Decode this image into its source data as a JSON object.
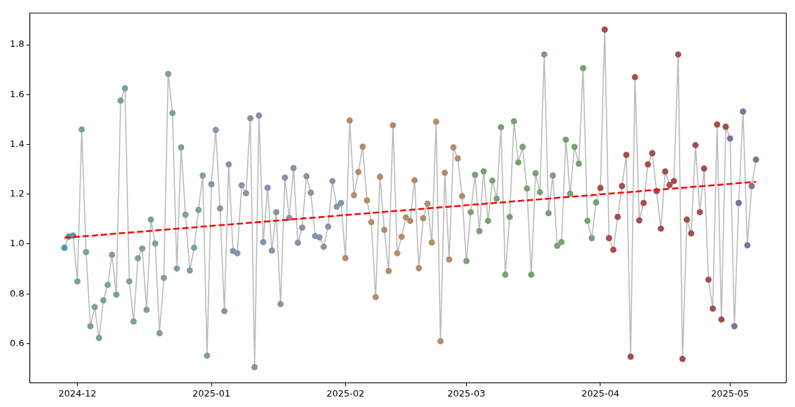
{
  "chart_data": {
    "type": "line",
    "marker": "circle",
    "line_style": "solid",
    "grid": false,
    "legend": false,
    "xlim": [
      "2024-11-20",
      "2025-05-14"
    ],
    "xticks": [
      "2024-12",
      "2025-01",
      "2025-02",
      "2025-03",
      "2025-04",
      "2025-05"
    ],
    "ylim": [
      0.443,
      1.927
    ],
    "yticks": [
      0.6,
      0.8,
      {
        "value": 1.0,
        "label": "1.0"
      },
      1.2,
      1.4,
      1.6,
      1.8
    ],
    "x": [
      "2024-11-28",
      "2024-11-29",
      "2024-11-30",
      "2024-12-01",
      "2024-12-02",
      "2024-12-03",
      "2024-12-04",
      "2024-12-05",
      "2024-12-06",
      "2024-12-07",
      "2024-12-08",
      "2024-12-09",
      "2024-12-10",
      "2024-12-11",
      "2024-12-12",
      "2024-12-13",
      "2024-12-14",
      "2024-12-15",
      "2024-12-16",
      "2024-12-17",
      "2024-12-18",
      "2024-12-19",
      "2024-12-20",
      "2024-12-21",
      "2024-12-22",
      "2024-12-23",
      "2024-12-24",
      "2024-12-25",
      "2024-12-26",
      "2024-12-27",
      "2024-12-28",
      "2024-12-29",
      "2024-12-30",
      "2024-12-31",
      "2025-01-01",
      "2025-01-02",
      "2025-01-03",
      "2025-01-04",
      "2025-01-05",
      "2025-01-06",
      "2025-01-07",
      "2025-01-08",
      "2025-01-09",
      "2025-01-10",
      "2025-01-11",
      "2025-01-12",
      "2025-01-13",
      "2025-01-14",
      "2025-01-15",
      "2025-01-16",
      "2025-01-17",
      "2025-01-18",
      "2025-01-19",
      "2025-01-20",
      "2025-01-21",
      "2025-01-22",
      "2025-01-23",
      "2025-01-24",
      "2025-01-25",
      "2025-01-26",
      "2025-01-27",
      "2025-01-28",
      "2025-01-29",
      "2025-01-30",
      "2025-01-31",
      "2025-02-01",
      "2025-02-02",
      "2025-02-03",
      "2025-02-04",
      "2025-02-05",
      "2025-02-06",
      "2025-02-07",
      "2025-02-08",
      "2025-02-09",
      "2025-02-10",
      "2025-02-11",
      "2025-02-12",
      "2025-02-13",
      "2025-02-14",
      "2025-02-15",
      "2025-02-16",
      "2025-02-17",
      "2025-02-18",
      "2025-02-19",
      "2025-02-20",
      "2025-02-21",
      "2025-02-22",
      "2025-02-23",
      "2025-02-24",
      "2025-02-25",
      "2025-02-26",
      "2025-02-27",
      "2025-02-28",
      "2025-03-01",
      "2025-03-02",
      "2025-03-03",
      "2025-03-04",
      "2025-03-05",
      "2025-03-06",
      "2025-03-07",
      "2025-03-08",
      "2025-03-09",
      "2025-03-10",
      "2025-03-11",
      "2025-03-12",
      "2025-03-13",
      "2025-03-14",
      "2025-03-15",
      "2025-03-16",
      "2025-03-17",
      "2025-03-18",
      "2025-03-19",
      "2025-03-20",
      "2025-03-21",
      "2025-03-22",
      "2025-03-23",
      "2025-03-24",
      "2025-03-25",
      "2025-03-26",
      "2025-03-27",
      "2025-03-28",
      "2025-03-29",
      "2025-03-30",
      "2025-03-31",
      "2025-04-01",
      "2025-04-02",
      "2025-04-03",
      "2025-04-04",
      "2025-04-05",
      "2025-04-06",
      "2025-04-07",
      "2025-04-08",
      "2025-04-09",
      "2025-04-10",
      "2025-04-11",
      "2025-04-12",
      "2025-04-13",
      "2025-04-14",
      "2025-04-15",
      "2025-04-16",
      "2025-04-17",
      "2025-04-18",
      "2025-04-19",
      "2025-04-20",
      "2025-04-21",
      "2025-04-22",
      "2025-04-23",
      "2025-04-24",
      "2025-04-25",
      "2025-04-26",
      "2025-04-27",
      "2025-04-28",
      "2025-04-29",
      "2025-04-30",
      "2025-05-01",
      "2025-05-02",
      "2025-05-03",
      "2025-05-04",
      "2025-05-05",
      "2025-05-06",
      "2025-05-07"
    ],
    "series": [
      {
        "type": "line",
        "color": "#bbbbbb",
        "values": [
          0.985,
          1.03,
          1.034,
          0.85,
          1.46,
          0.968,
          0.67,
          0.747,
          0.623,
          0.774,
          0.836,
          0.957,
          0.797,
          1.576,
          1.625,
          0.85,
          0.689,
          0.943,
          0.982,
          0.736,
          1.098,
          1.002,
          0.642,
          0.864,
          1.683,
          1.526,
          0.902,
          1.388,
          1.118,
          0.894,
          0.985,
          1.137,
          1.275,
          0.552,
          1.24,
          1.458,
          1.143,
          0.731,
          1.32,
          0.972,
          0.963,
          1.236,
          1.204,
          1.505,
          0.506,
          1.516,
          1.008,
          1.226,
          0.974,
          1.128,
          0.759,
          1.267,
          1.105,
          1.305,
          1.005,
          1.066,
          1.272,
          1.206,
          1.032,
          1.027,
          0.989,
          1.07,
          1.253,
          1.15,
          1.165,
          0.944,
          1.496,
          1.196,
          1.289,
          1.391,
          1.175,
          1.088,
          0.787,
          1.27,
          1.057,
          0.892,
          1.477,
          0.963,
          1.029,
          1.107,
          1.093,
          1.256,
          0.903,
          1.104,
          1.162,
          1.006,
          1.491,
          0.61,
          1.286,
          0.938,
          1.388,
          1.344,
          1.192,
          0.932,
          1.128,
          1.278,
          1.052,
          1.292,
          1.093,
          1.255,
          1.182,
          1.469,
          0.877,
          1.109,
          1.493,
          1.328,
          1.39,
          1.223,
          0.877,
          1.284,
          1.208,
          1.761,
          1.124,
          1.275,
          0.993,
          1.008,
          1.419,
          1.202,
          1.39,
          1.323,
          1.706,
          1.093,
          1.024,
          1.167,
          1.225,
          1.861,
          1.024,
          0.977,
          1.109,
          1.233,
          1.358,
          0.548,
          1.67,
          1.095,
          1.165,
          1.32,
          1.365,
          1.213,
          1.062,
          1.291,
          1.237,
          1.253,
          1.761,
          0.539,
          1.098,
          1.043,
          1.397,
          1.128,
          1.303,
          0.857,
          0.741,
          1.48,
          0.697,
          1.471,
          1.424,
          0.67,
          1.165,
          1.532,
          0.995,
          1.233,
          1.339
        ],
        "colors": [
          "#4a99a3",
          "#4a99a3",
          "#4a99a3",
          "#7f9ea2",
          "#7f9ea2",
          "#7f9ea2",
          "#7f9ea2",
          "#7f9ea2",
          "#7f9ea2",
          "#7f9ea2",
          "#7f9ea2",
          "#7f9ea2",
          "#7f9ea2",
          "#7f9ea2",
          "#7f9ea2",
          "#7f9ea2",
          "#7f9ea2",
          "#7f9ea2",
          "#7f9ea2",
          "#7f9ea2",
          "#7f9ea2",
          "#7f9ea2",
          "#7f9ea2",
          "#7f9ea2",
          "#7f9ea2",
          "#7f9ea2",
          "#7f9ea2",
          "#7f9ea2",
          "#7f9ea2",
          "#7f9ea2",
          "#7f9ea2",
          "#7f9ea2",
          "#7f9ea2",
          "#7f9ea2",
          "#8794a6",
          "#8794a6",
          "#8794a6",
          "#8794a6",
          "#8794a6",
          "#8794a6",
          "#8794a6",
          "#8794a6",
          "#8794a6",
          "#8794a6",
          "#8794a6",
          "#8794a6",
          "#8794a6",
          "#8794a6",
          "#8794a6",
          "#8794a6",
          "#8794a6",
          "#8794a6",
          "#8794a6",
          "#8794a6",
          "#8794a6",
          "#8794a6",
          "#8794a6",
          "#8794a6",
          "#8794a6",
          "#8794a6",
          "#8794a6",
          "#8794a6",
          "#8794a6",
          "#8794a6",
          "#8794a6",
          "#b38d6b",
          "#b38d6b",
          "#b38d6b",
          "#b38d6b",
          "#b38d6b",
          "#b38d6b",
          "#b38d6b",
          "#b38d6b",
          "#b38d6b",
          "#b38d6b",
          "#b38d6b",
          "#b38d6b",
          "#b38d6b",
          "#b38d6b",
          "#b38d6b",
          "#b38d6b",
          "#b38d6b",
          "#b38d6b",
          "#b38d6b",
          "#b38d6b",
          "#b38d6b",
          "#b38d6b",
          "#b38d6b",
          "#b38d6b",
          "#b38d6b",
          "#b38d6b",
          "#b38d6b",
          "#b38d6b",
          "#7d9e78",
          "#7d9e78",
          "#7d9e78",
          "#7d9e78",
          "#7d9e78",
          "#7d9e78",
          "#7d9e78",
          "#7d9e78",
          "#7d9e78",
          "#7d9e78",
          "#7d9e78",
          "#7d9e78",
          "#7d9e78",
          "#7d9e78",
          "#7d9e78",
          "#7d9e78",
          "#7d9e78",
          "#7d9e78",
          "#7d9e78",
          "#7d9e78",
          "#7d9e78",
          "#7d9e78",
          "#7d9e78",
          "#7d9e78",
          "#7d9e78",
          "#7d9e78",
          "#7d9e78",
          "#7d9e78",
          "#7d9e78",
          "#7d9e78",
          "#7d9e78",
          "#a24f52",
          "#a24f52",
          "#a24f52",
          "#a24f52",
          "#a24f52",
          "#a24f52",
          "#a24f52",
          "#a24f52",
          "#a24f52",
          "#a24f52",
          "#a24f52",
          "#a24f52",
          "#a24f52",
          "#a24f52",
          "#a24f52",
          "#a24f52",
          "#a24f52",
          "#a24f52",
          "#a24f52",
          "#a24f52",
          "#a24f52",
          "#a24f52",
          "#a24f52",
          "#a24f52",
          "#a24f52",
          "#a24f52",
          "#a24f52",
          "#a24f52",
          "#a24f52",
          "#a24f52",
          "#83709e",
          "#83709e",
          "#83709e",
          "#83709e",
          "#83709e",
          "#83709e",
          "#83709e"
        ]
      },
      {
        "type": "line",
        "color": "#ff0000",
        "x": [
          "2024-11-28",
          "2025-05-07"
        ],
        "values": [
          1.025,
          1.25
        ],
        "line_style": "dashed",
        "marker": "none"
      }
    ]
  }
}
